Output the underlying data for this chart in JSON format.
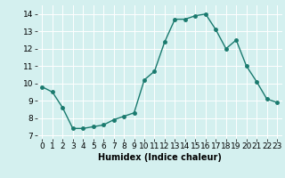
{
  "x": [
    0,
    1,
    2,
    3,
    4,
    5,
    6,
    7,
    8,
    9,
    10,
    11,
    12,
    13,
    14,
    15,
    16,
    17,
    18,
    19,
    20,
    21,
    22,
    23
  ],
  "y": [
    9.8,
    9.5,
    8.6,
    7.4,
    7.4,
    7.5,
    7.6,
    7.9,
    8.1,
    8.3,
    10.2,
    10.7,
    12.4,
    13.7,
    13.7,
    13.9,
    14.0,
    13.1,
    12.0,
    12.5,
    11.0,
    10.1,
    9.1,
    8.9
  ],
  "line_color": "#1a7a6e",
  "marker": "o",
  "marker_size": 2.5,
  "linewidth": 1.0,
  "xlabel": "Humidex (Indice chaleur)",
  "xlabel_fontsize": 7,
  "ylim": [
    6.8,
    14.5
  ],
  "xlim": [
    -0.5,
    23.5
  ],
  "yticks": [
    7,
    8,
    9,
    10,
    11,
    12,
    13,
    14
  ],
  "xticks": [
    0,
    1,
    2,
    3,
    4,
    5,
    6,
    7,
    8,
    9,
    10,
    11,
    12,
    13,
    14,
    15,
    16,
    17,
    18,
    19,
    20,
    21,
    22,
    23
  ],
  "bg_color": "#d4f0ef",
  "grid_color": "#ffffff",
  "tick_fontsize": 6.5
}
